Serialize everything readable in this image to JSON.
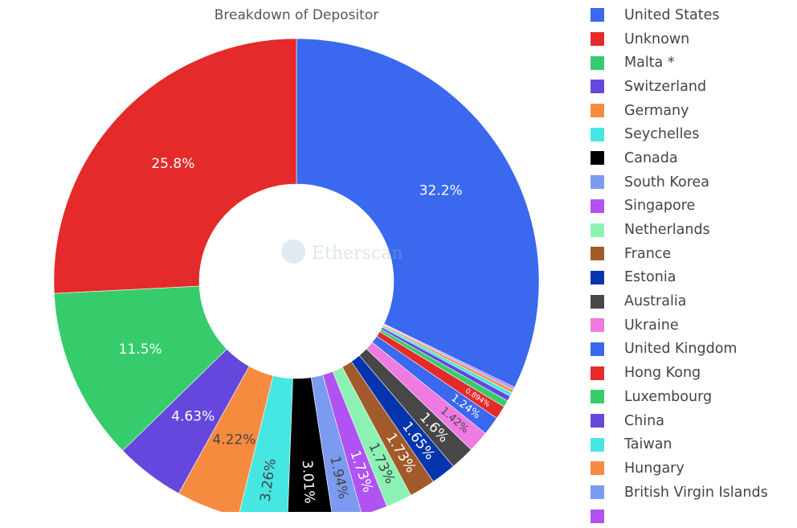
{
  "chart_data": {
    "type": "pie",
    "hole": true,
    "title": "Breakdown of Depositor",
    "watermark": "Etherscan",
    "legend_position": "right",
    "slices": [
      {
        "label": "United States",
        "value": 32.2,
        "text": "32.2%",
        "color": "#3a68ee"
      },
      {
        "label": "Unknown",
        "value": 25.8,
        "text": "25.8%",
        "color": "#e42a2a"
      },
      {
        "label": "Malta *",
        "value": 11.5,
        "text": "11.5%",
        "color": "#36cc6c"
      },
      {
        "label": "Switzerland",
        "value": 4.63,
        "text": "4.63%",
        "color": "#6547dd"
      },
      {
        "label": "Germany",
        "value": 4.22,
        "text": "4.22%",
        "color": "#f68b3f"
      },
      {
        "label": "Seychelles",
        "value": 3.26,
        "text": "3.26%",
        "color": "#46e6e2"
      },
      {
        "label": "Canada",
        "value": 3.01,
        "text": "3.01%",
        "color": "#000000"
      },
      {
        "label": "South Korea",
        "value": 1.94,
        "text": "1.94%",
        "color": "#7b9bf2"
      },
      {
        "label": "Singapore",
        "value": 1.73,
        "text": "1.73%",
        "color": "#b152f2"
      },
      {
        "label": "Netherlands",
        "value": 1.73,
        "text": "1.73%",
        "color": "#8cf2b4"
      },
      {
        "label": "France",
        "value": 1.73,
        "text": "1.73%",
        "color": "#a35a2a"
      },
      {
        "label": "Estonia",
        "value": 1.65,
        "text": "1.65%",
        "color": "#0535ad"
      },
      {
        "label": "Australia",
        "value": 1.6,
        "text": "1.6%",
        "color": "#474747"
      },
      {
        "label": "Ukraine",
        "value": 1.42,
        "text": "1.42%",
        "color": "#ef7ae2"
      },
      {
        "label": "United Kingdom",
        "value": 1.24,
        "text": "1.24%",
        "color": "#3a68ee"
      },
      {
        "label": "Hong Kong",
        "value": 0.894,
        "text": "0.894%",
        "color": "#e42a2a"
      },
      {
        "label": "Luxembourg",
        "value": 0.45,
        "color": "#36cc6c"
      },
      {
        "label": "China",
        "value": 0.35,
        "color": "#6547dd"
      },
      {
        "label": "Taiwan",
        "value": 0.25,
        "color": "#46e6e2"
      },
      {
        "label": "Hungary",
        "value": 0.2,
        "color": "#f68b3f"
      },
      {
        "label": "British Virgin Islands",
        "value": 0.1,
        "color": "#7b9bf2"
      },
      {
        "value": 0.1,
        "color": "#b152f2"
      }
    ]
  }
}
